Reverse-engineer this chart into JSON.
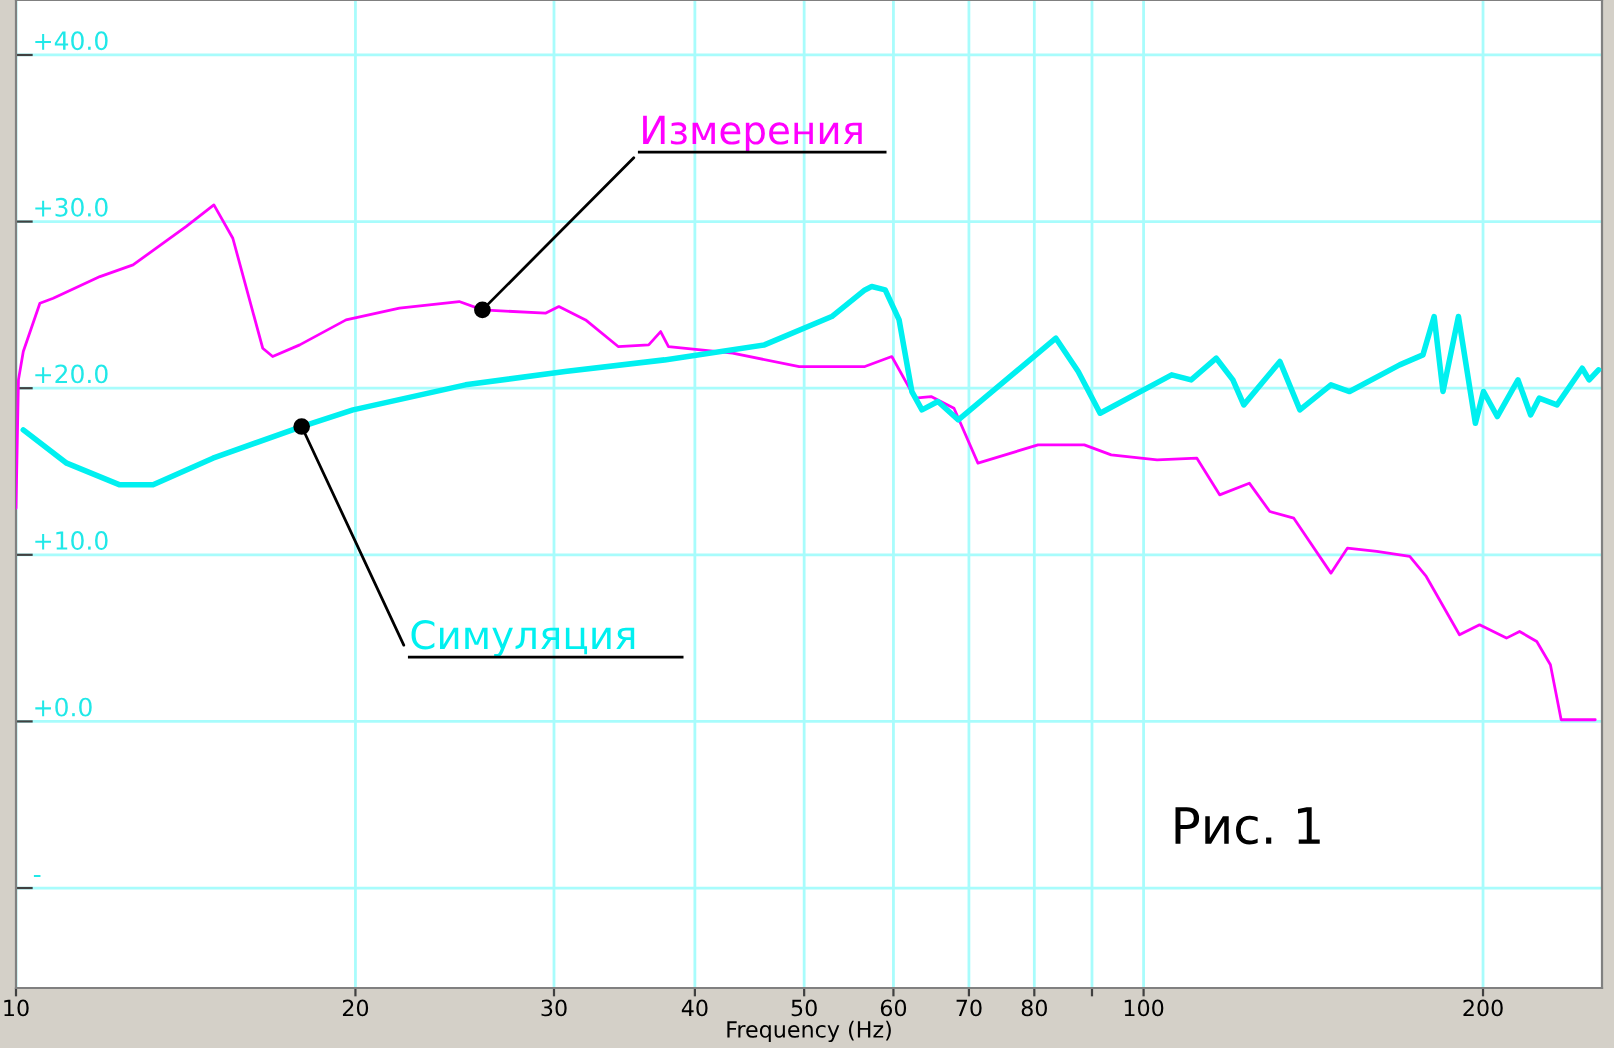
{
  "chart_data": {
    "type": "line",
    "xlabel": "Frequency (Hz)",
    "log": "x",
    "grid": true,
    "legend": false,
    "xlim": [
      10,
      255
    ],
    "ylim": [
      -16,
      43.3
    ],
    "xticks": [
      10,
      20,
      30,
      40,
      50,
      60,
      70,
      80,
      {
        "value": 90,
        "label": null
      },
      100,
      200
    ],
    "yticks": [
      {
        "value": 40,
        "label": "+40.0"
      },
      {
        "value": 30,
        "label": "+30.0"
      },
      {
        "value": 20,
        "label": "+20.0"
      },
      {
        "value": 10,
        "label": "+10.0"
      },
      {
        "value": 0,
        "label": "+0.0"
      },
      {
        "value": -10,
        "label": "-"
      }
    ],
    "series": [
      {
        "color": "#ff00ff",
        "x": [
          10.0,
          10.05,
          10.15,
          10.5,
          10.79,
          11.87,
          12.7,
          14.15,
          14.98,
          15.57,
          16.55,
          16.89,
          17.85,
          19.62,
          21.88,
          24.72,
          25.92,
          29.48,
          30.3,
          32.0,
          34.2,
          36.4,
          37.3,
          37.9,
          43.2,
          49.5,
          56.6,
          59.8,
          62.7,
          64.8,
          67.9,
          71.3,
          80.6,
          88.6,
          93.6,
          102.8,
          111.5,
          116.8,
          124.1,
          129.4,
          135.9,
          146.6,
          151.6,
          161.0,
          172.2,
          178.1,
          190.6,
          198.6,
          209.8,
          215.5,
          223.2,
          229.5,
          234.6,
          251.5
        ],
        "values": [
          12.8,
          20.5,
          22.2,
          25.1,
          25.4,
          26.7,
          27.4,
          29.7,
          31.0,
          29.0,
          22.4,
          21.9,
          22.6,
          24.1,
          24.8,
          25.2,
          24.7,
          24.5,
          24.9,
          24.1,
          22.5,
          22.6,
          23.4,
          22.5,
          22.1,
          21.3,
          21.3,
          21.9,
          19.4,
          19.5,
          18.8,
          15.5,
          16.6,
          16.6,
          16.0,
          15.7,
          15.8,
          13.6,
          14.3,
          12.6,
          12.2,
          8.9,
          10.4,
          10.2,
          9.9,
          8.7,
          5.2,
          5.8,
          5.0,
          5.4,
          4.8,
          3.4,
          0.1,
          0.1
        ]
      },
      {
        "color": "#00f0f0",
        "x": [
          10.15,
          11.09,
          12.36,
          13.23,
          14.95,
          17.92,
          19.9,
          25.04,
          30.68,
          37.6,
          46.1,
          52.9,
          56.6,
          57.4,
          59.0,
          60.7,
          62.3,
          63.6,
          65.7,
          68.5,
          83.6,
          87.5,
          91.5,
          105.9,
          110.2,
          116.0,
          120.0,
          122.7,
          132.1,
          137.6,
          146.6,
          152.3,
          168.7,
          176.9,
          181.0,
          184.3,
          190.2,
          196.9,
          200.2,
          205.9,
          214.8,
          220.4,
          224.3,
          232.6,
          244.9,
          248.4,
          253.2
        ],
        "values": [
          17.5,
          15.5,
          14.2,
          14.2,
          15.8,
          17.7,
          18.7,
          20.2,
          21.0,
          21.7,
          22.6,
          24.3,
          25.9,
          26.1,
          25.9,
          24.1,
          19.8,
          18.7,
          19.2,
          18.1,
          23.0,
          21.0,
          18.5,
          20.8,
          20.5,
          21.8,
          20.5,
          19.0,
          21.6,
          18.7,
          20.2,
          19.8,
          21.4,
          22.0,
          24.3,
          19.8,
          24.3,
          17.9,
          19.8,
          18.3,
          20.5,
          18.4,
          19.4,
          19.0,
          21.2,
          20.5,
          21.1
        ]
      }
    ],
    "annotations": [
      {
        "text": "Измерения",
        "x": 25.92,
        "y": 24.7
      },
      {
        "text": "Симуляция",
        "x": 17.92,
        "y": 17.7
      },
      "Рис. 1"
    ]
  }
}
